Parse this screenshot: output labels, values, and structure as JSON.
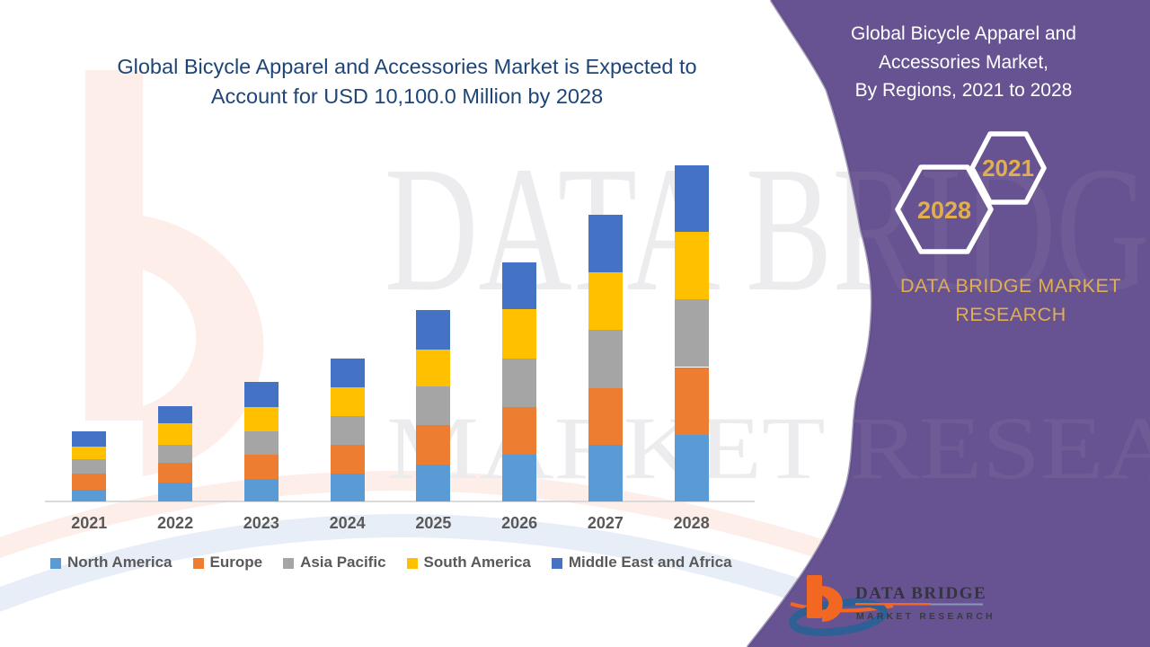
{
  "palette": {
    "purple_panel": "#675391",
    "purple_edge": "#5b4883",
    "gold_accent": "#e2ae4e",
    "title_navy": "#1e4577",
    "axis_gray": "#d9d9d9",
    "label_gray": "#595959",
    "logo_orange": "#f26822",
    "logo_blue": "#2e6096",
    "white": "#ffffff"
  },
  "main_title": {
    "text": "Global Bicycle Apparel and Accessories Market is Expected to Account for USD 10,100.0 Million by 2028"
  },
  "side_panel": {
    "title_lines": [
      "Global Bicycle Apparel and",
      "Accessories Market,",
      "By Regions, 2021 to 2028"
    ],
    "hexagons": [
      {
        "label": "2021"
      },
      {
        "label": "2028"
      }
    ],
    "brand_line1": "DATA BRIDGE MARKET",
    "brand_line2": "RESEARCH"
  },
  "logo": {
    "name_line": "DATA BRIDGE",
    "sub_line": "MARKET RESEARCH"
  },
  "watermark": {
    "line1": "DATA BRIDGE",
    "line2": "MARKET RESEARCH"
  },
  "chart_data": {
    "type": "bar",
    "stacked": true,
    "title": "Global Bicycle Apparel and Accessories Market, By Regions, 2021 to 2028",
    "unit": "USD Million",
    "annotation": "Expected to account for USD 10,100.0 Million by 2028",
    "legend_position": "bottom",
    "y_axis_visible": false,
    "grid": false,
    "categories": [
      "2021",
      "2022",
      "2023",
      "2024",
      "2025",
      "2026",
      "2027",
      "2028"
    ],
    "series": [
      {
        "name": "North America",
        "color": "#5b9bd5",
        "values": [
          360,
          570,
          680,
          830,
          1110,
          1400,
          1690,
          2010
        ]
      },
      {
        "name": "Europe",
        "color": "#ed7d31",
        "values": [
          490,
          600,
          720,
          880,
          1190,
          1440,
          1710,
          2030
        ]
      },
      {
        "name": "Asia Pacific",
        "color": "#a5a5a5",
        "values": [
          410,
          540,
          720,
          860,
          1150,
          1470,
          1760,
          2030
        ]
      },
      {
        "name": "South America",
        "color": "#ffc000",
        "values": [
          400,
          630,
          720,
          870,
          1130,
          1460,
          1740,
          2030
        ]
      },
      {
        "name": "Middle East and Africa",
        "color": "#4472c4",
        "values": [
          450,
          530,
          750,
          860,
          1180,
          1430,
          1730,
          2000
        ]
      }
    ],
    "totals_estimated": [
      2110,
      2870,
      3590,
      4300,
      5760,
      7200,
      8630,
      10100
    ]
  }
}
